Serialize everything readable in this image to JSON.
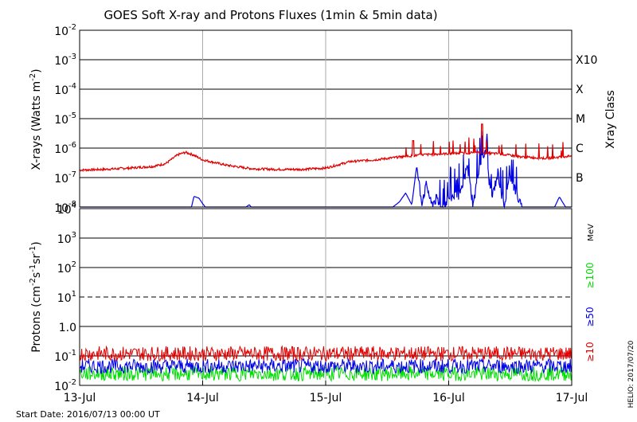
{
  "chart_data": {
    "title": "GOES Soft X-ray and Protons Fluxes   (1min & 5min data)",
    "start_date": "Start Date: 2016/07/13 00:00 UT",
    "credit": "HELIO: 2017/07/20",
    "x_ticks": [
      "13-Jul",
      "14-Jul",
      "15-Jul",
      "16-Jul",
      "17-Jul"
    ],
    "xray_panel": {
      "type": "line",
      "y_scale": "log",
      "ylim": [
        1e-08,
        0.01
      ],
      "ylabel": "X-rays (Watts m",
      "ylabel_sup": "-2",
      "ylabel_close": ")",
      "y_ticks": [
        {
          "base": "10",
          "exp": "-8"
        },
        {
          "base": "10",
          "exp": "-7"
        },
        {
          "base": "10",
          "exp": "-6"
        },
        {
          "base": "10",
          "exp": "-5"
        },
        {
          "base": "10",
          "exp": "-4"
        },
        {
          "base": "10",
          "exp": "-3"
        },
        {
          "base": "10",
          "exp": "-2"
        }
      ],
      "class_axis_label": "Xray Class",
      "class_labels": [
        "B",
        "C",
        "M",
        "X",
        "X10"
      ],
      "colors": {
        "long": "#e00000",
        "short": "#0000e6"
      },
      "series_long_x_days": [
        0.0,
        0.2,
        0.4,
        0.6,
        0.7,
        0.8,
        0.86,
        0.92,
        1.0,
        1.2,
        1.4,
        1.6,
        1.8,
        2.0,
        2.2,
        2.4,
        2.6,
        2.8,
        3.0,
        3.2,
        3.4,
        3.6,
        3.8,
        4.0
      ],
      "series_long_y": [
        1.8e-07,
        1.9e-07,
        2.1e-07,
        2.4e-07,
        3e-07,
        6e-07,
        7.2e-07,
        6e-07,
        4e-07,
        2.6e-07,
        2e-07,
        1.9e-07,
        1.9e-07,
        2.1e-07,
        3.5e-07,
        4e-07,
        5e-07,
        6e-07,
        6.5e-07,
        7e-07,
        6.5e-07,
        5e-07,
        4.5e-07,
        5.5e-07
      ],
      "series_short_x_days": [
        0.0,
        0.5,
        0.9,
        0.93,
        0.97,
        1.0,
        1.04,
        1.3,
        1.38,
        1.42,
        2.5,
        2.6,
        2.65,
        2.7,
        2.74,
        2.78,
        2.82,
        2.86,
        2.9,
        2.94,
        3.0,
        3.05,
        3.1,
        3.15,
        3.2,
        3.25,
        3.3,
        3.35,
        3.4,
        3.45,
        3.5,
        3.55,
        3.6,
        3.7,
        3.85,
        3.9,
        3.95,
        4.0
      ],
      "series_short_y": [
        7e-09,
        7e-09,
        7e-09,
        2.3e-08,
        2e-08,
        1.3e-08,
        8e-09,
        7e-09,
        1.2e-08,
        7e-09,
        7e-09,
        1.5e-08,
        3e-08,
        1.2e-08,
        2.5e-07,
        1.5e-08,
        6e-08,
        1.2e-08,
        2e-08,
        8e-09,
        2e-08,
        2.5e-08,
        3e-08,
        2.5e-07,
        1.2e-08,
        3e-07,
        7e-07,
        2e-08,
        1.5e-07,
        1e-08,
        1.2e-07,
        3e-08,
        8e-09,
        7e-09,
        8e-09,
        2.2e-08,
        1e-08,
        7e-09
      ]
    },
    "proton_panel": {
      "type": "line",
      "y_scale": "log",
      "ylim": [
        0.01,
        10000
      ],
      "ylabel": "Protons (cm",
      "ylabel_parts": [
        {
          "t": "Protons (cm",
          "sup": false
        },
        {
          "t": "-2",
          "sup": true
        },
        {
          "t": "s",
          "sup": false
        },
        {
          "t": "-1",
          "sup": true
        },
        {
          "t": "sr",
          "sup": false
        },
        {
          "t": "-1",
          "sup": true
        },
        {
          "t": ")",
          "sup": false
        }
      ],
      "y_ticks": [
        {
          "base": "10",
          "exp": "-2",
          "value": 0.01
        },
        {
          "base": "10",
          "exp": "-1",
          "value": 0.1
        },
        {
          "base": "1.0",
          "exp": "",
          "value": 1
        },
        {
          "base": "10",
          "exp": "1",
          "value": 10
        },
        {
          "base": "10",
          "exp": "2",
          "value": 100
        },
        {
          "base": "10",
          "exp": "3",
          "value": 1000
        },
        {
          "base": "10",
          "exp": "4",
          "value": 10000
        }
      ],
      "threshold": 10,
      "unit_label": "MeV",
      "series": [
        {
          "name": "≥10",
          "color": "#e00000",
          "base": 0.12
        },
        {
          "name": "≥50",
          "color": "#0000e6",
          "base": 0.045
        },
        {
          "name": "≥100",
          "color": "#00dd00",
          "base": 0.025
        }
      ]
    }
  }
}
